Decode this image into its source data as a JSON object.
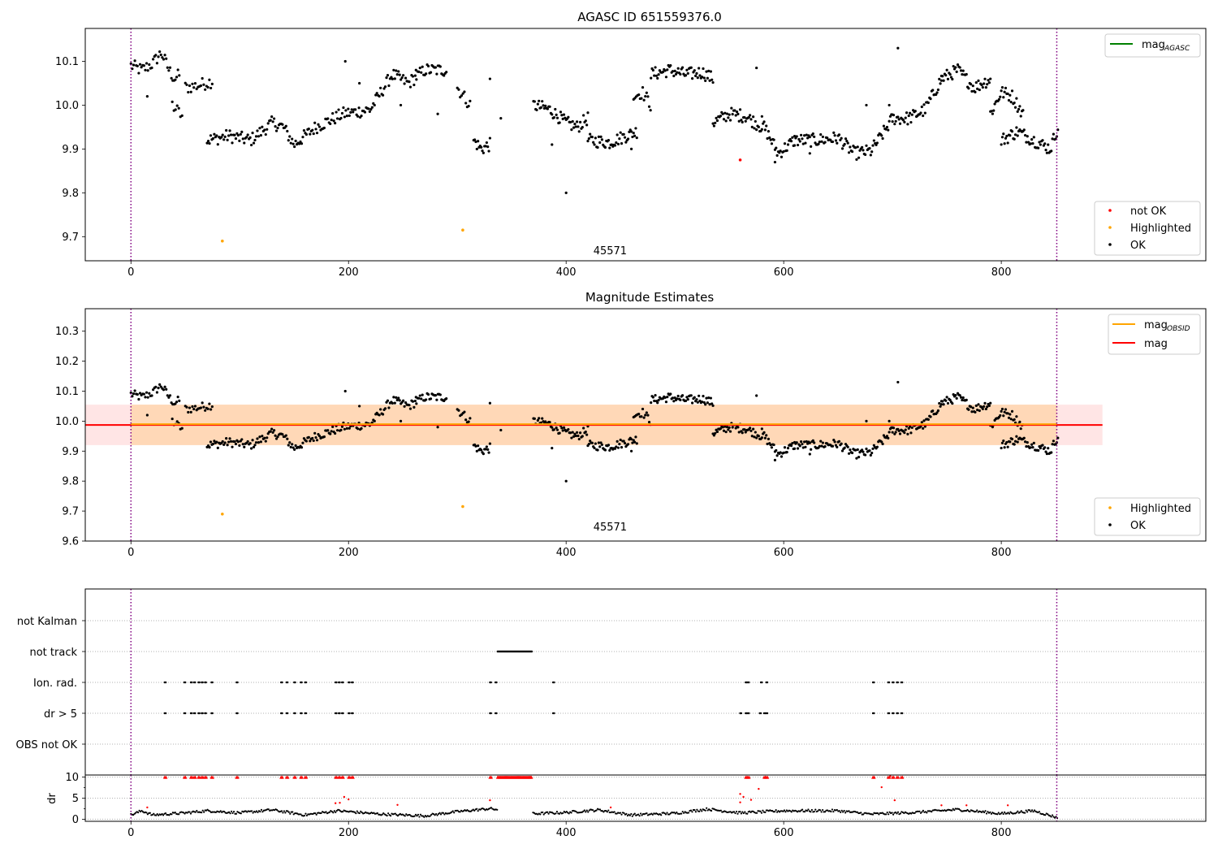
{
  "chart_data": [
    {
      "type": "scatter",
      "title": "AGASC ID 651559376.0",
      "xlim": [
        -42,
        988
      ],
      "ylim": [
        9.645,
        10.175
      ],
      "xticks": [
        "0",
        "200",
        "400",
        "600",
        "800"
      ],
      "yticks": [
        "9.7",
        "9.8",
        "9.9",
        "10.0",
        "10.1"
      ],
      "vlines_x": [
        0,
        851
      ],
      "vline_color": "#800080",
      "annotation": {
        "text": "45571",
        "x": 425,
        "y": 9.66
      },
      "legend_lines": [
        {
          "name": "mag",
          "sub": "AGASC",
          "color": "#008000"
        }
      ],
      "legend_points": [
        {
          "name": "not OK",
          "color": "#ff0000"
        },
        {
          "name": "Highlighted",
          "color": "#ffa500"
        },
        {
          "name": "OK",
          "color": "#000000"
        }
      ],
      "series": [
        {
          "name": "not OK",
          "color": "#ff0000",
          "points": [
            [
              560,
              9.875
            ]
          ]
        },
        {
          "name": "Highlighted",
          "color": "#ffa500",
          "points": [
            [
              84,
              9.69
            ],
            [
              305,
              9.715
            ]
          ]
        },
        {
          "name": "OK",
          "color": "#000000",
          "segments": [
            {
              "x_start": 0,
              "x_end": 45,
              "step": 1.2,
              "points": [
                [
                  0,
                  10.09
                ],
                [
                  10,
                  10.08
                ],
                [
                  20,
                  10.095
                ],
                [
                  28,
                  10.12
                ],
                [
                  35,
                  10.08
                ],
                [
                  40,
                  10.06
                ],
                [
                  45,
                  10.07
                ]
              ]
            },
            {
              "x_start": 38,
              "x_end": 47,
              "step": 1.5,
              "points": [
                [
                  38,
                  10.0
                ],
                [
                  47,
                  9.975
                ]
              ]
            },
            {
              "x_start": 50,
              "x_end": 75,
              "step": 1.3,
              "points": [
                [
                  50,
                  10.04
                ],
                [
                  62,
                  10.045
                ],
                [
                  75,
                  10.055
                ]
              ]
            },
            {
              "x_start": 70,
              "x_end": 170,
              "step": 1.1,
              "points": [
                [
                  70,
                  9.92
                ],
                [
                  90,
                  9.93
                ],
                [
                  110,
                  9.92
                ],
                [
                  130,
                  9.96
                ],
                [
                  140,
                  9.95
                ],
                [
                  150,
                  9.91
                ],
                [
                  170,
                  9.95
                ]
              ]
            },
            {
              "x_start": 170,
              "x_end": 290,
              "step": 1.1,
              "points": [
                [
                  170,
                  9.95
                ],
                [
                  195,
                  9.98
                ],
                [
                  220,
                  9.99
                ],
                [
                  240,
                  10.07
                ],
                [
                  255,
                  10.05
                ],
                [
                  270,
                  10.08
                ],
                [
                  290,
                  10.08
                ]
              ]
            },
            {
              "x_start": 300,
              "x_end": 312,
              "step": 1.3,
              "points": [
                [
                  300,
                  10.04
                ],
                [
                  312,
                  10.0
                ]
              ]
            },
            {
              "x_start": 315,
              "x_end": 330,
              "step": 1.0,
              "points": [
                [
                  315,
                  9.92
                ],
                [
                  322,
                  9.9
                ],
                [
                  330,
                  9.91
                ]
              ]
            },
            {
              "x_start": 370,
              "x_end": 420,
              "step": 1.0,
              "points": [
                [
                  370,
                  10.0
                ],
                [
                  385,
                  9.99
                ],
                [
                  400,
                  9.96
                ],
                [
                  410,
                  9.95
                ],
                [
                  420,
                  9.97
                ]
              ]
            },
            {
              "x_start": 420,
              "x_end": 465,
              "step": 1.0,
              "points": [
                [
                  420,
                  9.92
                ],
                [
                  440,
                  9.915
                ],
                [
                  455,
                  9.93
                ],
                [
                  465,
                  9.94
                ]
              ]
            },
            {
              "x_start": 462,
              "x_end": 478,
              "step": 1.2,
              "points": [
                [
                  462,
                  10.02
                ],
                [
                  470,
                  10.03
                ],
                [
                  478,
                  10.0
                ]
              ]
            },
            {
              "x_start": 478,
              "x_end": 535,
              "step": 1.0,
              "points": [
                [
                  478,
                  10.07
                ],
                [
                  495,
                  10.08
                ],
                [
                  510,
                  10.07
                ],
                [
                  525,
                  10.075
                ],
                [
                  535,
                  10.06
                ]
              ]
            },
            {
              "x_start": 535,
              "x_end": 580,
              "step": 1.0,
              "points": [
                [
                  535,
                  9.96
                ],
                [
                  550,
                  9.98
                ],
                [
                  565,
                  9.975
                ],
                [
                  580,
                  9.95
                ]
              ]
            },
            {
              "x_start": 580,
              "x_end": 610,
              "step": 1.0,
              "points": [
                [
                  580,
                  9.96
                ],
                [
                  595,
                  9.89
                ],
                [
                  610,
                  9.92
                ]
              ]
            },
            {
              "x_start": 610,
              "x_end": 700,
              "step": 1.0,
              "points": [
                [
                  610,
                  9.92
                ],
                [
                  630,
                  9.92
                ],
                [
                  650,
                  9.925
                ],
                [
                  665,
                  9.89
                ],
                [
                  680,
                  9.895
                ],
                [
                  690,
                  9.93
                ],
                [
                  700,
                  9.97
                ]
              ]
            },
            {
              "x_start": 700,
              "x_end": 745,
              "step": 1.0,
              "points": [
                [
                  700,
                  9.97
                ],
                [
                  715,
                  9.97
                ],
                [
                  730,
                  9.99
                ],
                [
                  745,
                  10.06
                ]
              ]
            },
            {
              "x_start": 745,
              "x_end": 790,
              "step": 1.0,
              "points": [
                [
                  745,
                  10.06
                ],
                [
                  760,
                  10.08
                ],
                [
                  775,
                  10.04
                ],
                [
                  790,
                  10.06
                ]
              ]
            },
            {
              "x_start": 790,
              "x_end": 820,
              "step": 1.0,
              "points": [
                [
                  790,
                  9.98
                ],
                [
                  800,
                  10.03
                ],
                [
                  810,
                  10.02
                ],
                [
                  820,
                  9.98
                ]
              ]
            },
            {
              "x_start": 800,
              "x_end": 852,
              "step": 1.0,
              "points": [
                [
                  800,
                  9.92
                ],
                [
                  815,
                  9.94
                ],
                [
                  830,
                  9.92
                ],
                [
                  845,
                  9.9
                ],
                [
                  852,
                  9.95
                ]
              ]
            }
          ],
          "extras": [
            [
              15,
              10.02
            ],
            [
              197,
              10.1
            ],
            [
              210,
              10.05
            ],
            [
              248,
              10.0
            ],
            [
              262,
              10.08
            ],
            [
              282,
              9.98
            ],
            [
              330,
              10.06
            ],
            [
              340,
              9.97
            ],
            [
              387,
              9.91
            ],
            [
              400,
              9.8
            ],
            [
              460,
              9.9
            ],
            [
              575,
              10.085
            ],
            [
              697,
              10.0
            ],
            [
              705,
              10.13
            ],
            [
              592,
              9.87
            ],
            [
              624,
              9.89
            ],
            [
              676,
              10.0
            ]
          ]
        }
      ]
    },
    {
      "type": "scatter",
      "title": "Magnitude Estimates",
      "xlim": [
        -42,
        988
      ],
      "ylim": [
        9.6,
        10.375
      ],
      "xticks": [
        "0",
        "200",
        "400",
        "600",
        "800"
      ],
      "yticks": [
        "9.6",
        "9.7",
        "9.8",
        "9.9",
        "10.0",
        "10.1",
        "10.2",
        "10.3"
      ],
      "vlines_x": [
        0,
        851
      ],
      "vline_color": "#800080",
      "annotation": {
        "text": "45571",
        "x": 425,
        "y": 9.635
      },
      "mag": 9.987,
      "mag_obsid": 9.99,
      "mag_band": [
        9.92,
        10.055
      ],
      "obsid_band_x": [
        0,
        851
      ],
      "mag_band_x": [
        -42,
        893
      ],
      "mag_color": "#ff0000",
      "mag_obsid_color": "#ffa500",
      "legend_lines": [
        {
          "name": "mag",
          "sub": "OBSID",
          "color": "#ffa500"
        },
        {
          "name": "mag",
          "sub": "",
          "color": "#ff0000"
        }
      ],
      "legend_points": [
        {
          "name": "Highlighted",
          "color": "#ffa500"
        },
        {
          "name": "OK",
          "color": "#000000"
        }
      ],
      "series_ref": 0
    },
    {
      "type": "scatter",
      "title": "",
      "xlim": [
        -42,
        988
      ],
      "ylabels": [
        "not Kalman",
        "not track",
        "Ion. rad.",
        "dr > 5",
        "OBS not OK"
      ],
      "flags": {
        "not track": [
          [
            337,
            369
          ]
        ],
        "Ion. rad.": [
          31,
          49,
          55,
          58,
          62,
          65,
          68,
          74,
          97,
          138,
          143,
          150,
          156,
          160,
          188,
          191,
          194,
          200,
          203,
          330,
          335,
          388,
          565,
          567,
          579,
          584,
          682,
          696,
          700,
          704,
          708
        ],
        "dr > 5": [
          31,
          49,
          55,
          58,
          62,
          65,
          68,
          74,
          97,
          138,
          143,
          150,
          156,
          160,
          188,
          191,
          194,
          200,
          203,
          330,
          335,
          388,
          560,
          565,
          567,
          578,
          582,
          584,
          682,
          696,
          700,
          704,
          708
        ]
      }
    },
    {
      "type": "scatter",
      "title": "",
      "xlim": [
        -42,
        988
      ],
      "ylim": [
        -0.5,
        10.5
      ],
      "xticks": [
        "0",
        "200",
        "400",
        "600",
        "800"
      ],
      "yticks": [
        "0",
        "5",
        "10"
      ],
      "ylabel": "dr",
      "vlines_x": [
        0,
        851
      ],
      "clip_value": 10,
      "clipped_x": [
        31,
        49,
        55,
        58,
        62,
        65,
        68,
        74,
        97,
        138,
        143,
        150,
        156,
        160,
        188,
        191,
        194,
        200,
        203,
        330,
        565,
        567,
        582,
        584,
        682,
        696,
        700,
        704,
        708
      ],
      "red_points": [
        [
          15,
          2.8
        ],
        [
          188,
          3.8
        ],
        [
          192,
          3.9
        ],
        [
          196,
          5.3
        ],
        [
          200,
          4.7
        ],
        [
          245,
          3.4
        ],
        [
          330,
          4.5
        ],
        [
          441,
          2.8
        ],
        [
          560,
          6.0
        ],
        [
          563,
          5.3
        ],
        [
          577,
          7.2
        ],
        [
          570,
          4.6
        ],
        [
          560,
          4.0
        ],
        [
          690,
          7.6
        ],
        [
          702,
          4.5
        ],
        [
          745,
          3.3
        ],
        [
          768,
          3.3
        ],
        [
          806,
          3.3
        ],
        [
          698,
          10.2
        ]
      ],
      "dr_baseline": [
        [
          0,
          1.0
        ],
        [
          10,
          2.0
        ],
        [
          20,
          1.0
        ],
        [
          50,
          1.5
        ],
        [
          70,
          2.0
        ],
        [
          100,
          1.5
        ],
        [
          130,
          2.2
        ],
        [
          160,
          1.0
        ],
        [
          190,
          2.0
        ],
        [
          230,
          1.2
        ],
        [
          270,
          0.8
        ],
        [
          300,
          1.8
        ],
        [
          330,
          2.5
        ],
        [
          370,
          1.3
        ],
        [
          400,
          1.6
        ],
        [
          430,
          2.2
        ],
        [
          460,
          1.0
        ],
        [
          500,
          1.4
        ],
        [
          530,
          2.4
        ],
        [
          560,
          1.5
        ],
        [
          600,
          2.0
        ],
        [
          650,
          2.0
        ],
        [
          680,
          1.2
        ],
        [
          720,
          1.6
        ],
        [
          760,
          2.3
        ],
        [
          800,
          1.3
        ],
        [
          830,
          2.0
        ],
        [
          850,
          0.5
        ]
      ]
    }
  ]
}
